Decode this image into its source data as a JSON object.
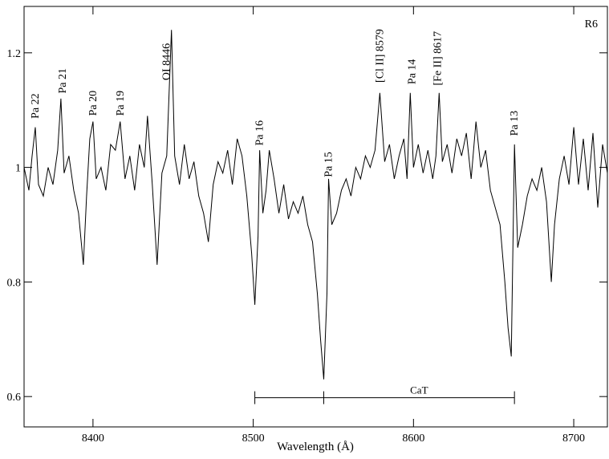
{
  "chart_data": {
    "type": "line",
    "label": "R6",
    "xlabel": "Wavelength  (Å)",
    "xlim": [
      8357,
      8721
    ],
    "xticks": [
      8400,
      8500,
      8600,
      8700
    ],
    "ylim": [
      0.547,
      1.281
    ],
    "yticks": [
      0.6,
      0.8,
      1,
      1.2
    ],
    "series": [
      {
        "color": "#000000",
        "x": [
          8357,
          8360,
          8362,
          8364,
          8366,
          8369,
          8372,
          8375,
          8378,
          8380,
          8382,
          8385,
          8388,
          8391,
          8394,
          8396,
          8398,
          8400,
          8402,
          8405,
          8408,
          8411,
          8414,
          8417,
          8420,
          8423,
          8426,
          8429,
          8432,
          8434,
          8437,
          8440,
          8443,
          8446,
          8449,
          8451,
          8454,
          8457,
          8460,
          8463,
          8466,
          8469,
          8472,
          8475,
          8478,
          8481,
          8484,
          8487,
          8490,
          8493,
          8496,
          8499,
          8501,
          8503,
          8504,
          8506,
          8508,
          8510,
          8513,
          8516,
          8519,
          8522,
          8525,
          8528,
          8531,
          8534,
          8537,
          8540,
          8542,
          8544,
          8546,
          8547,
          8549,
          8552,
          8555,
          8558,
          8561,
          8564,
          8567,
          8570,
          8573,
          8576,
          8579,
          8582,
          8585,
          8588,
          8591,
          8594,
          8596,
          8598,
          8600,
          8603,
          8606,
          8609,
          8612,
          8614,
          8616,
          8618,
          8621,
          8624,
          8627,
          8630,
          8633,
          8636,
          8639,
          8642,
          8645,
          8648,
          8651,
          8654,
          8657,
          8659,
          8661,
          8663,
          8665,
          8668,
          8671,
          8674,
          8677,
          8680,
          8683,
          8686,
          8688,
          8691,
          8694,
          8697,
          8700,
          8703,
          8706,
          8709,
          8712,
          8715,
          8718,
          8721
        ],
        "values": [
          1.0,
          0.96,
          1.02,
          1.07,
          0.97,
          0.95,
          1.0,
          0.97,
          1.03,
          1.12,
          0.99,
          1.02,
          0.96,
          0.92,
          0.83,
          0.95,
          1.05,
          1.08,
          0.98,
          1.0,
          0.96,
          1.04,
          1.03,
          1.08,
          0.98,
          1.02,
          0.96,
          1.04,
          1.0,
          1.09,
          0.97,
          0.83,
          0.99,
          1.02,
          1.24,
          1.02,
          0.97,
          1.04,
          0.98,
          1.01,
          0.95,
          0.92,
          0.87,
          0.97,
          1.01,
          0.99,
          1.03,
          0.97,
          1.05,
          1.02,
          0.95,
          0.85,
          0.76,
          0.88,
          1.03,
          0.92,
          0.96,
          1.03,
          0.98,
          0.92,
          0.97,
          0.91,
          0.94,
          0.92,
          0.95,
          0.9,
          0.87,
          0.78,
          0.7,
          0.63,
          0.78,
          0.98,
          0.9,
          0.92,
          0.96,
          0.98,
          0.95,
          1.0,
          0.98,
          1.02,
          1.0,
          1.03,
          1.13,
          1.01,
          1.04,
          0.98,
          1.02,
          1.05,
          0.98,
          1.13,
          1.0,
          1.04,
          0.99,
          1.03,
          0.98,
          1.02,
          1.13,
          1.01,
          1.04,
          0.99,
          1.05,
          1.02,
          1.06,
          0.98,
          1.08,
          1.0,
          1.03,
          0.96,
          0.93,
          0.9,
          0.8,
          0.72,
          0.67,
          1.04,
          0.86,
          0.9,
          0.95,
          0.98,
          0.96,
          1.0,
          0.94,
          0.8,
          0.9,
          0.98,
          1.02,
          0.97,
          1.07,
          0.97,
          1.05,
          0.96,
          1.06,
          0.93,
          1.04,
          0.99
        ]
      }
    ],
    "annotations": [
      {
        "text": "Pa 22",
        "x": 8364,
        "y": 1.085
      },
      {
        "text": "Pa 21",
        "x": 8381,
        "y": 1.129
      },
      {
        "text": "Pa 20",
        "x": 8400,
        "y": 1.09
      },
      {
        "text": "Pa 19",
        "x": 8417,
        "y": 1.09
      },
      {
        "text": "OI 8446",
        "x": 8446,
        "y": 1.152
      },
      {
        "text": "Pa 16",
        "x": 8504,
        "y": 1.038
      },
      {
        "text": "Pa 15",
        "x": 8547,
        "y": 0.983
      },
      {
        "text": "[Cl II] 8579",
        "x": 8579,
        "y": 1.148
      },
      {
        "text": "Pa 14",
        "x": 8599,
        "y": 1.145
      },
      {
        "text": "[Fe II] 8617",
        "x": 8615,
        "y": 1.143
      },
      {
        "text": "Pa 13",
        "x": 8663,
        "y": 1.055
      }
    ],
    "bracket": {
      "text": "CaT",
      "x": [
        8501,
        8544,
        8663
      ],
      "y": 0.598
    }
  }
}
